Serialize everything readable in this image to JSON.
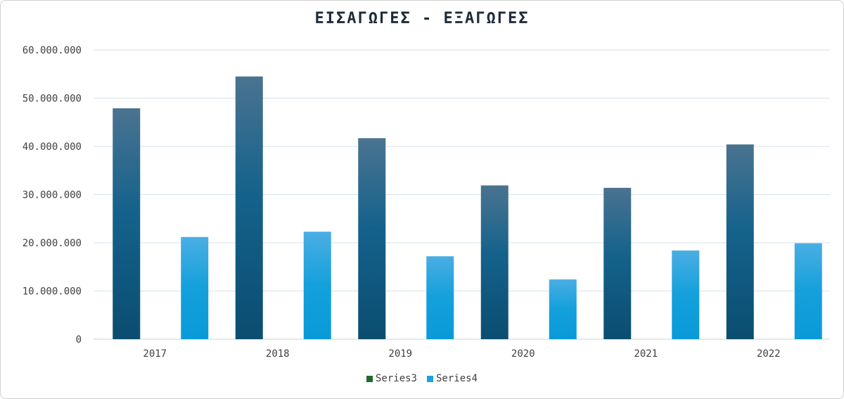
{
  "chart_data": {
    "type": "bar",
    "title": "ΕΙΣΑΓΩΓΕΣ - ΕΞΑΓΩΓΕΣ",
    "categories": [
      "2017",
      "2018",
      "2019",
      "2020",
      "2021",
      "2022"
    ],
    "ylim": [
      0,
      60000000
    ],
    "yticks": [
      "0",
      "10.000.000",
      "20.000.000",
      "30.000.000",
      "40.000.000",
      "50.000.000",
      "60.000.000"
    ],
    "grid": true,
    "legend_position": "bottom",
    "series": [
      {
        "values": [
          47900000,
          54500000,
          41700000,
          31900000,
          31400000,
          40400000
        ],
        "color": "#1a5f86"
      },
      {
        "name": "Series3",
        "values": [
          0,
          0,
          0,
          0,
          0,
          0
        ],
        "color": "#1e6b2f"
      },
      {
        "name": "Series4",
        "values": [
          21200000,
          22300000,
          17200000,
          12400000,
          18400000,
          19900000
        ],
        "color": "#1aa3dc"
      }
    ]
  }
}
